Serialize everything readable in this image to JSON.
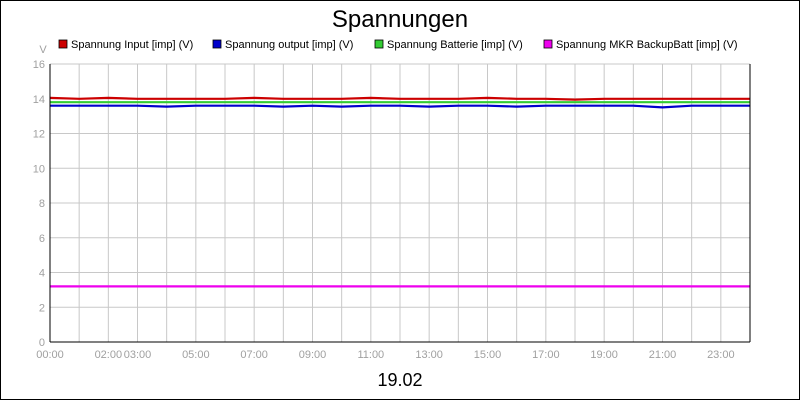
{
  "chart_data": {
    "type": "line",
    "title": "Spannungen",
    "date_label": "19.02",
    "ylabel": "V",
    "xlabel": "",
    "ylim": [
      0,
      16
    ],
    "y_ticks": [
      "0",
      "2",
      "4",
      "6",
      "8",
      "10",
      "12",
      "14",
      "16"
    ],
    "x_ticks": [
      {
        "label": "00:00",
        "hour": 0
      },
      {
        "label": "02:00",
        "hour": 2
      },
      {
        "label": "03:00",
        "hour": 3
      },
      {
        "label": "05:00",
        "hour": 5
      },
      {
        "label": "07:00",
        "hour": 7
      },
      {
        "label": "09:00",
        "hour": 9
      },
      {
        "label": "11:00",
        "hour": 11
      },
      {
        "label": "13:00",
        "hour": 13
      },
      {
        "label": "15:00",
        "hour": 15
      },
      {
        "label": "17:00",
        "hour": 17
      },
      {
        "label": "19:00",
        "hour": 19
      },
      {
        "label": "21:00",
        "hour": 21
      },
      {
        "label": "23:00",
        "hour": 23
      }
    ],
    "xlim_hours": [
      0,
      24
    ],
    "grid": true,
    "legend_position": "top",
    "series": [
      {
        "name": "Spannung Input [imp] (V)",
        "color": "#cc0000",
        "x": [
          0,
          1,
          2,
          3,
          4,
          5,
          6,
          7,
          8,
          9,
          10,
          11,
          12,
          13,
          14,
          15,
          16,
          17,
          18,
          19,
          20,
          21,
          22,
          23,
          24
        ],
        "values": [
          14.05,
          14.0,
          14.05,
          14.0,
          14.0,
          14.0,
          14.0,
          14.05,
          14.0,
          14.0,
          14.0,
          14.05,
          14.0,
          14.0,
          14.0,
          14.05,
          14.0,
          14.0,
          13.95,
          14.0,
          14.0,
          14.0,
          14.0,
          14.0,
          14.0
        ]
      },
      {
        "name": "Spannung output [imp] (V)",
        "color": "#0000cc",
        "x": [
          0,
          1,
          2,
          3,
          4,
          5,
          6,
          7,
          8,
          9,
          10,
          11,
          12,
          13,
          14,
          15,
          16,
          17,
          18,
          19,
          20,
          21,
          22,
          23,
          24
        ],
        "values": [
          13.6,
          13.6,
          13.6,
          13.6,
          13.55,
          13.6,
          13.6,
          13.6,
          13.55,
          13.6,
          13.55,
          13.6,
          13.6,
          13.55,
          13.6,
          13.6,
          13.55,
          13.6,
          13.6,
          13.6,
          13.6,
          13.5,
          13.6,
          13.6,
          13.6
        ]
      },
      {
        "name": "Spannung Batterie [imp] (V)",
        "color": "#33cc33",
        "x": [
          0,
          1,
          2,
          3,
          4,
          5,
          6,
          7,
          8,
          9,
          10,
          11,
          12,
          13,
          14,
          15,
          16,
          17,
          18,
          19,
          20,
          21,
          22,
          23,
          24
        ],
        "values": [
          13.8,
          13.8,
          13.8,
          13.8,
          13.8,
          13.8,
          13.8,
          13.8,
          13.8,
          13.8,
          13.8,
          13.8,
          13.8,
          13.8,
          13.8,
          13.8,
          13.8,
          13.8,
          13.8,
          13.8,
          13.8,
          13.8,
          13.8,
          13.8,
          13.8
        ]
      },
      {
        "name": "Spannung MKR BackupBatt [imp] (V)",
        "color": "#ee00ee",
        "x": [
          0,
          24
        ],
        "values": [
          3.2,
          3.2
        ]
      }
    ]
  }
}
